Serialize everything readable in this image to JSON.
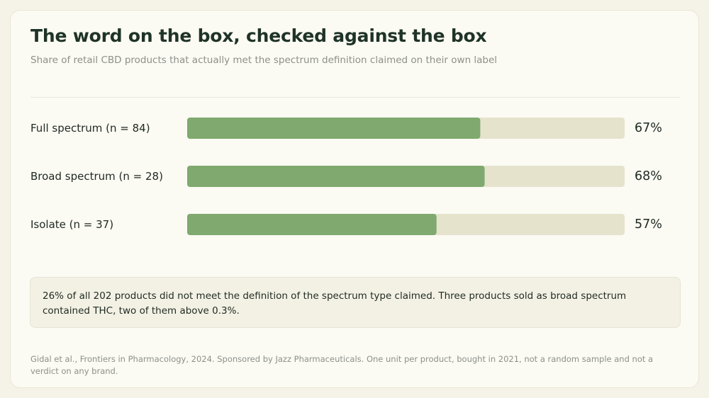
{
  "header": {
    "title": "The word on the box, checked against the box",
    "subtitle": "Share of retail CBD products that actually met the spectrum definition claimed on their own label"
  },
  "chart_data": {
    "type": "bar",
    "orientation": "horizontal",
    "categories": [
      "Full spectrum (n = 84)",
      "Broad spectrum (n = 28)",
      "Isolate (n = 37)"
    ],
    "values": [
      67,
      68,
      57
    ],
    "value_labels": [
      "67%",
      "68%",
      "57%"
    ],
    "xlim": [
      0,
      100
    ],
    "unit": "%",
    "grid": false,
    "colors": {
      "bar": "#7fa96e",
      "track": "#e6e3cd"
    }
  },
  "note": {
    "text": "26% of all 202 products did not meet the definition of the spectrum type claimed. Three products sold as broad spectrum contained THC, two of them above 0.3%."
  },
  "footer": {
    "source": "Gidal et al., Frontiers in Pharmacology, 2024. Sponsored by Jazz Pharmaceuticals. One unit per product, bought in 2021, not a random sample and not a verdict on any brand."
  }
}
